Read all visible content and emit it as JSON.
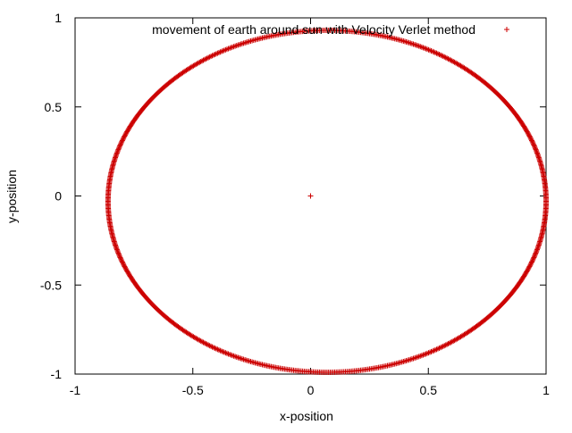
{
  "chart_data": {
    "type": "scatter",
    "title": "",
    "xlabel": "x-position",
    "ylabel": "y-position",
    "xlim": [
      -1,
      1
    ],
    "ylim": [
      -1,
      1
    ],
    "xticks": [
      -1,
      -0.5,
      0,
      0.5,
      1
    ],
    "yticks": [
      -1,
      -0.5,
      0,
      0.5,
      1
    ],
    "x_tick_labels": [
      "-1",
      "-0.5",
      "0",
      "0.5",
      "1"
    ],
    "y_tick_labels": [
      "-1",
      "-0.5",
      "0",
      "0.5",
      "1"
    ],
    "grid": false,
    "legend_position": "top-right",
    "marker": "plus",
    "series": [
      {
        "name": "movement of earth around sun with Velocity Verlet method",
        "color": "#cc0000",
        "marker": "plus",
        "orbit": {
          "center_x": 0.07,
          "center_y": -0.03,
          "radius_x": 0.93,
          "radius_y": 0.96,
          "sampling": "dense ellipse",
          "visible_points": [
            [
              1.0,
              0.0
            ],
            [
              0.94,
              0.5
            ],
            [
              0.65,
              0.8
            ],
            [
              0.0,
              0.92
            ],
            [
              -0.63,
              0.55
            ],
            [
              -0.86,
              0.0
            ],
            [
              -0.75,
              -0.45
            ],
            [
              -0.35,
              -0.87
            ],
            [
              0.1,
              -1.0
            ],
            [
              0.62,
              -0.83
            ],
            [
              0.92,
              -0.58
            ],
            [
              1.0,
              -0.43
            ]
          ]
        },
        "sun": {
          "x": 0.0,
          "y": 0.0
        }
      }
    ]
  }
}
